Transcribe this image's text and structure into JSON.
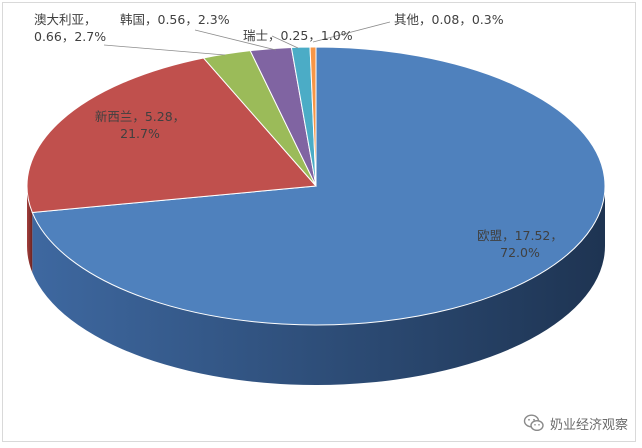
{
  "chart_data": {
    "type": "pie",
    "style": "3d",
    "title": "",
    "slices": [
      {
        "name": "欧盟",
        "value": 17.52,
        "percent": 72.0,
        "label_line1": "欧盟，17.52，",
        "label_line2": "72.0%",
        "color": "#4f81bd",
        "side_dark": "#1e3452",
        "side_light": "#3e68a0"
      },
      {
        "name": "新西兰",
        "value": 5.28,
        "percent": 21.7,
        "label_line1": "新西兰，5.28，",
        "label_line2": "21.7%",
        "color": "#c0504d",
        "side_dark": "#6d2321",
        "side_light": "#a3403d"
      },
      {
        "name": "澳大利亚",
        "value": 0.66,
        "percent": 2.7,
        "label_line1": "澳大利亚，",
        "label_line2": "0.66，2.7%",
        "color": "#9bbb59",
        "side_dark": "#55672f",
        "side_light": "#7e9c45"
      },
      {
        "name": "韩国",
        "value": 0.56,
        "percent": 2.3,
        "label_line1": "韩国，0.56，2.3%",
        "label_line2": "",
        "color": "#8064a2",
        "side_dark": "#43345a",
        "side_light": "#6a5289"
      },
      {
        "name": "瑞士",
        "value": 0.25,
        "percent": 1.0,
        "label_line1": "瑞士，0.25，1.0%",
        "label_line2": "",
        "color": "#4bacc6",
        "side_dark": "#245c6b",
        "side_light": "#3b90a6"
      },
      {
        "name": "其他",
        "value": 0.08,
        "percent": 0.3,
        "label_line1": "其他，0.08，0.3%",
        "label_line2": "",
        "color": "#f79646",
        "side_dark": "#8a4c1b",
        "side_light": "#d07a33"
      }
    ]
  },
  "watermark": {
    "icon": "wechat-icon",
    "text": "奶业经济观察"
  }
}
